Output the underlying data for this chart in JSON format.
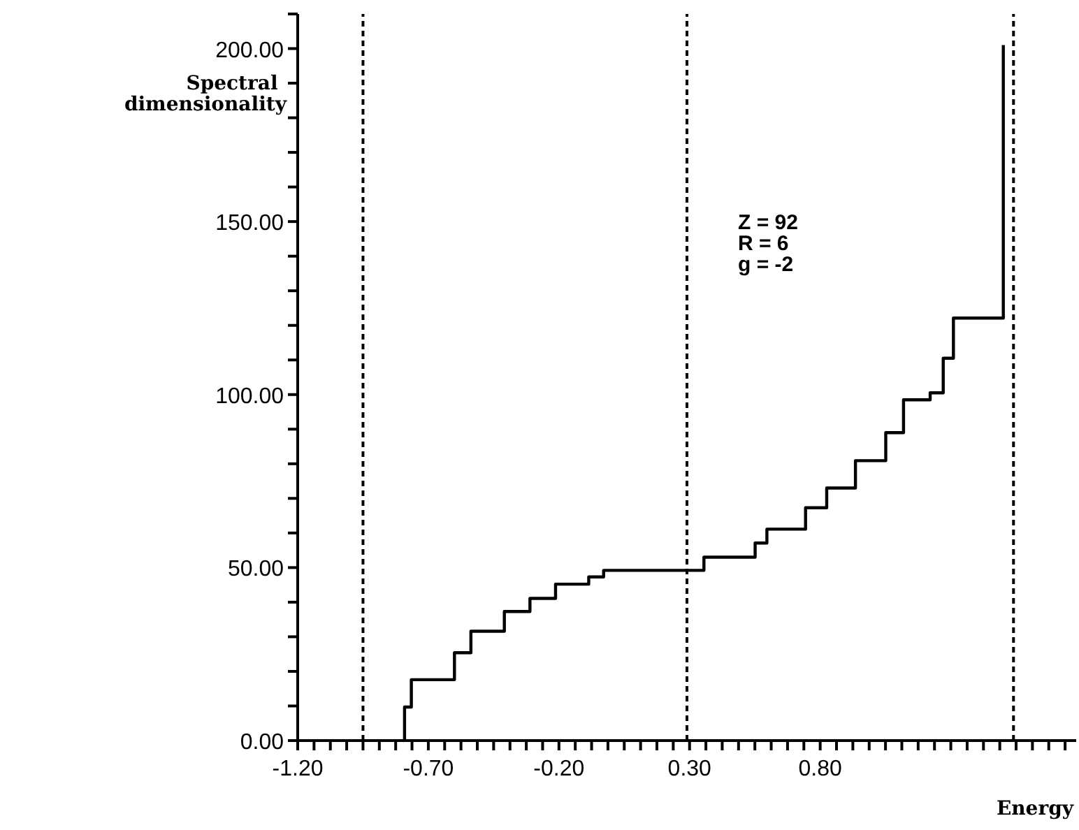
{
  "chart_data": {
    "type": "step",
    "xlabel": "Energy",
    "ylabel": "Spectral dimensionality",
    "annotations": [
      "Z = 92",
      "R = 6",
      "g = -2"
    ],
    "x": [
      -0.791,
      -0.791,
      -0.765,
      -0.6,
      -0.537,
      -0.409,
      -0.311,
      -0.213,
      -0.086,
      -0.029,
      0.355,
      0.551,
      0.596,
      0.744,
      0.825,
      0.935,
      1.051,
      1.119,
      1.221,
      1.271,
      1.31,
      1.501
    ],
    "series": [
      {
        "color": "#000000",
        "values": [
          0,
          9.7,
          17.6,
          25.4,
          31.6,
          37.3,
          41.1,
          45.2,
          47.3,
          49.2,
          53.0,
          57.1,
          61.1,
          67.3,
          73.0,
          80.9,
          89.0,
          98.5,
          100.5,
          110.5,
          122.1,
          201
        ]
      }
    ],
    "xlim": [
      -1.2,
      1.78
    ],
    "ylim": [
      0,
      210
    ],
    "xticks": [
      {
        "value": -1.2,
        "label": "-1.20"
      },
      {
        "value": -1.1375,
        "label": null
      },
      {
        "value": -1.075,
        "label": null
      },
      {
        "value": -1.0125,
        "label": null
      },
      {
        "value": -0.95,
        "label": null
      },
      {
        "value": -0.8875,
        "label": null
      },
      {
        "value": -0.825,
        "label": null
      },
      {
        "value": -0.7625,
        "label": null
      },
      {
        "value": -0.7,
        "label": "-0.70"
      },
      {
        "value": -0.6375,
        "label": null
      },
      {
        "value": -0.575,
        "label": null
      },
      {
        "value": -0.5125,
        "label": null
      },
      {
        "value": -0.45,
        "label": null
      },
      {
        "value": -0.3875,
        "label": null
      },
      {
        "value": -0.325,
        "label": null
      },
      {
        "value": -0.2625,
        "label": null
      },
      {
        "value": -0.2,
        "label": "-0.20"
      },
      {
        "value": -0.1375,
        "label": null
      },
      {
        "value": -0.075,
        "label": null
      },
      {
        "value": -0.0125,
        "label": null
      },
      {
        "value": 0.05,
        "label": null
      },
      {
        "value": 0.1125,
        "label": null
      },
      {
        "value": 0.175,
        "label": null
      },
      {
        "value": 0.2375,
        "label": null
      },
      {
        "value": 0.3,
        "label": "0.30"
      },
      {
        "value": 0.3625,
        "label": null
      },
      {
        "value": 0.425,
        "label": null
      },
      {
        "value": 0.4875,
        "label": null
      },
      {
        "value": 0.55,
        "label": null
      },
      {
        "value": 0.6125,
        "label": null
      },
      {
        "value": 0.675,
        "label": null
      },
      {
        "value": 0.7375,
        "label": null
      },
      {
        "value": 0.8,
        "label": "0.80"
      },
      {
        "value": 0.8625,
        "label": null
      },
      {
        "value": 0.925,
        "label": null
      },
      {
        "value": 0.9875,
        "label": null
      },
      {
        "value": 1.05,
        "label": null
      },
      {
        "value": 1.1125,
        "label": null
      },
      {
        "value": 1.175,
        "label": null
      },
      {
        "value": 1.2375,
        "label": null
      },
      {
        "value": 1.3,
        "label": null
      },
      {
        "value": 1.3625,
        "label": null
      },
      {
        "value": 1.425,
        "label": null
      },
      {
        "value": 1.4875,
        "label": null
      },
      {
        "value": 1.55,
        "label": null
      },
      {
        "value": 1.6125,
        "label": null
      },
      {
        "value": 1.675,
        "label": null
      },
      {
        "value": 1.7375,
        "label": null
      }
    ],
    "yticks": [
      {
        "value": 0,
        "label": "0.00"
      },
      {
        "value": 10,
        "label": null
      },
      {
        "value": 20,
        "label": null
      },
      {
        "value": 30,
        "label": null
      },
      {
        "value": 40,
        "label": null
      },
      {
        "value": 50,
        "label": "50.00"
      },
      {
        "value": 60,
        "label": null
      },
      {
        "value": 70,
        "label": null
      },
      {
        "value": 80,
        "label": null
      },
      {
        "value": 90,
        "label": null
      },
      {
        "value": 100,
        "label": "100.00"
      },
      {
        "value": 110,
        "label": null
      },
      {
        "value": 120,
        "label": null
      },
      {
        "value": 130,
        "label": null
      },
      {
        "value": 140,
        "label": null
      },
      {
        "value": 150,
        "label": "150.00"
      },
      {
        "value": 160,
        "label": null
      },
      {
        "value": 170,
        "label": null
      },
      {
        "value": 180,
        "label": null
      },
      {
        "value": 190,
        "label": null
      },
      {
        "value": 200,
        "label": "200.00"
      },
      {
        "value": 210,
        "label": null
      }
    ],
    "ref_lines": [
      {
        "axis": "x",
        "value": -0.95,
        "line_style": "dashed"
      },
      {
        "axis": "x",
        "value": 0.29,
        "line_style": "dashed"
      },
      {
        "axis": "x",
        "value": 1.54,
        "line_style": "dashed"
      }
    ],
    "grid": false,
    "line_style": "solid",
    "marker": "none"
  }
}
